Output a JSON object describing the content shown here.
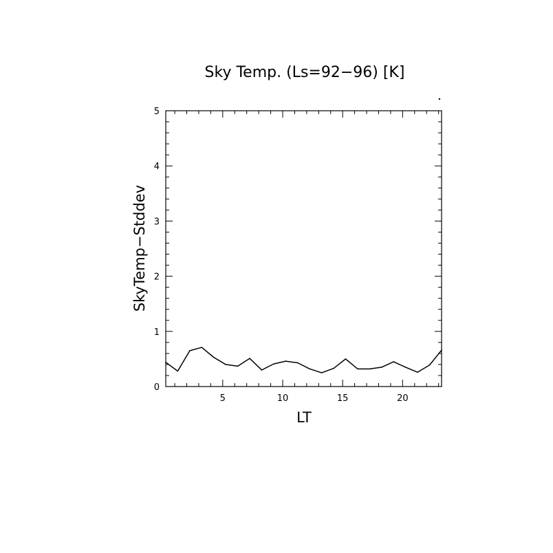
{
  "chart_data": {
    "type": "line",
    "title": "Sky Temp. (Ls=92−96) [K]",
    "xlabel": "LT",
    "ylabel": "SkyTemp−Stddev",
    "xlim": [
      0.25,
      23.25
    ],
    "ylim": [
      0,
      5
    ],
    "x_ticks": [
      5,
      10,
      15,
      20
    ],
    "x_tick_labels": [
      "5",
      "10",
      "15",
      "20"
    ],
    "y_ticks": [
      0,
      1,
      2,
      3,
      4,
      5
    ],
    "y_tick_labels": [
      "0",
      "1",
      "2",
      "3",
      "4",
      "5"
    ],
    "x_minor_step": 1,
    "y_minor_step": 0.2,
    "grid": false,
    "series": [
      {
        "x": [
          0.25,
          1.25,
          2.25,
          3.25,
          4.25,
          5.25,
          6.25,
          7.25,
          8.25,
          9.25,
          10.25,
          11.25,
          12.25,
          13.25,
          14.25,
          15.25,
          16.25,
          17.25,
          18.25,
          19.25,
          20.25,
          21.25,
          22.25,
          23.25
        ],
        "values": [
          0.44,
          0.28,
          0.65,
          0.71,
          0.53,
          0.4,
          0.37,
          0.51,
          0.3,
          0.41,
          0.46,
          0.43,
          0.32,
          0.25,
          0.33,
          0.5,
          0.32,
          0.32,
          0.35,
          0.45,
          0.35,
          0.26,
          0.39,
          0.66
        ]
      }
    ]
  }
}
